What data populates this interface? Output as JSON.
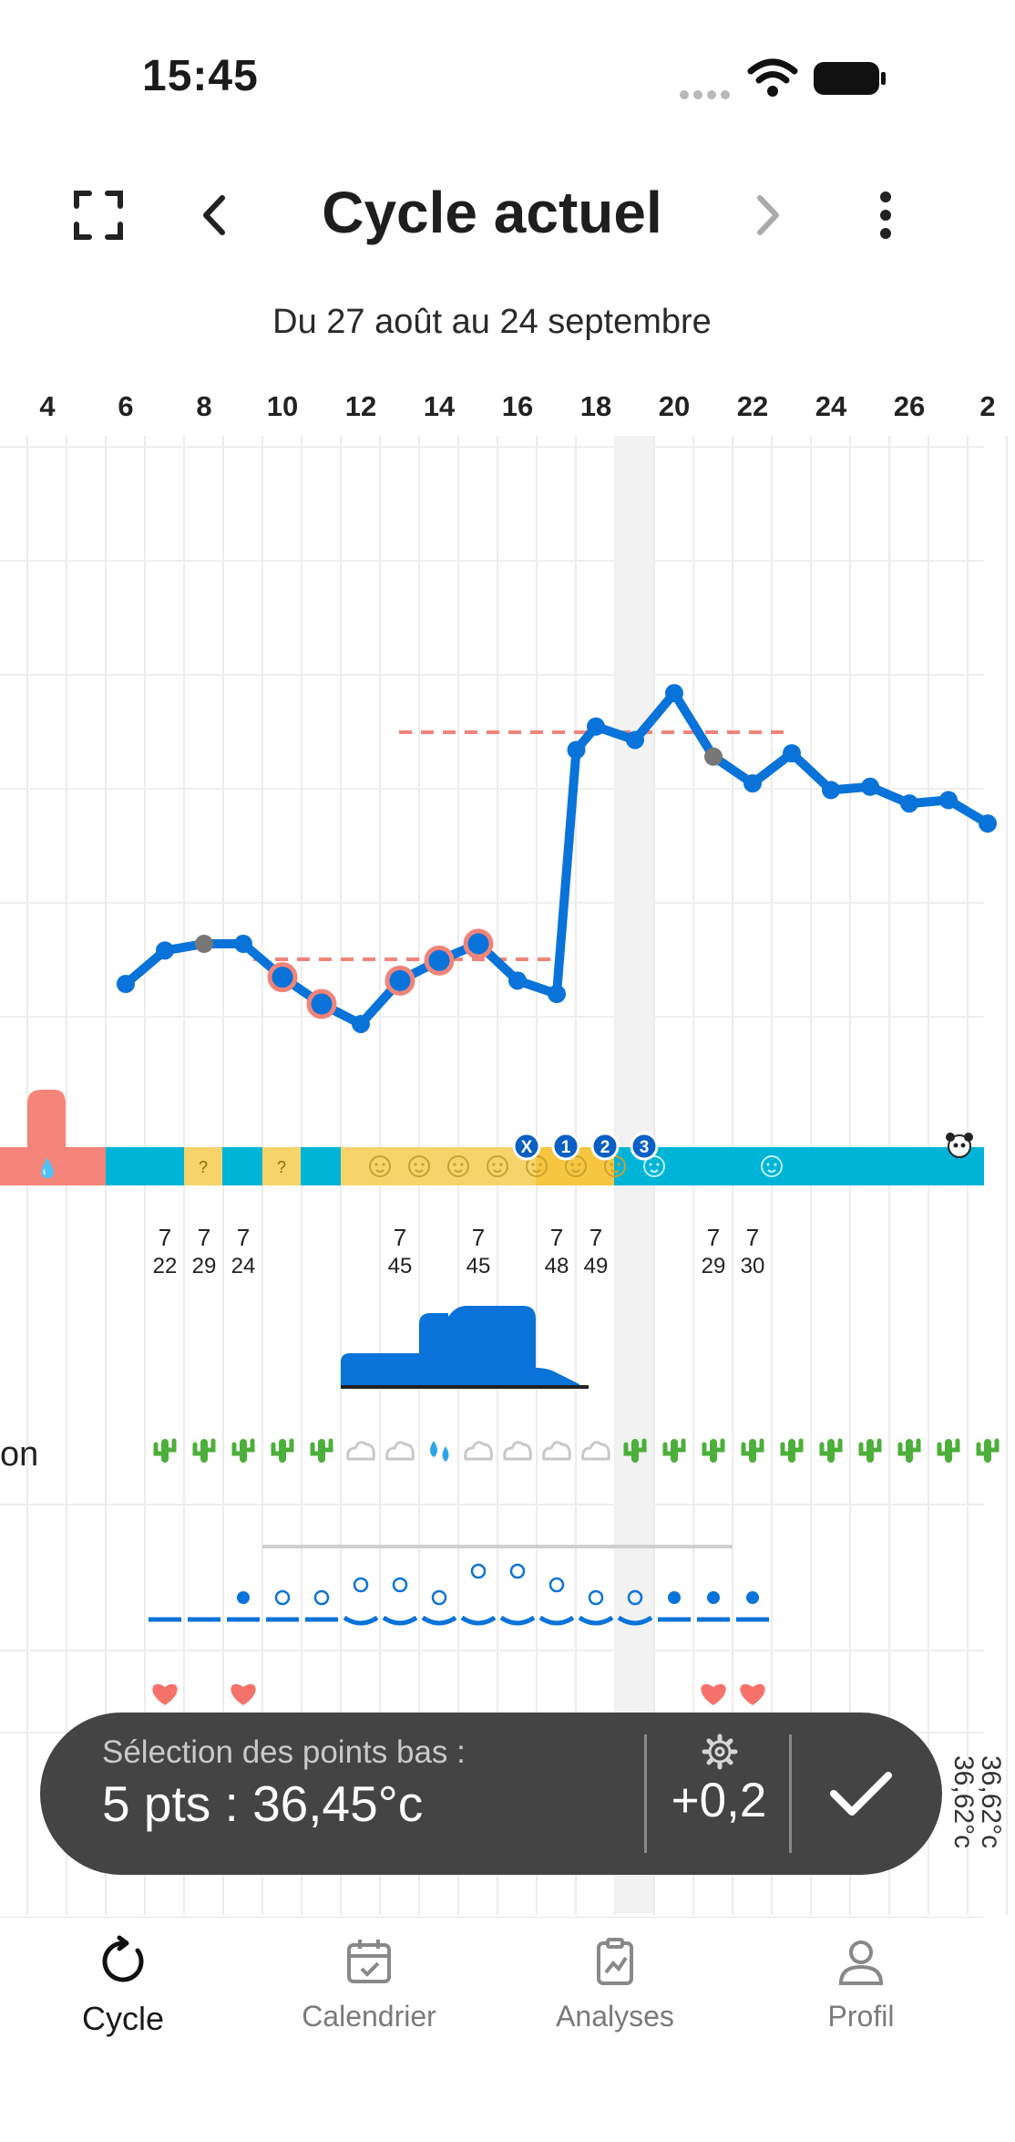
{
  "status_bar": {
    "time": "15:45"
  },
  "header": {
    "title": "Cycle actuel",
    "date_range": "Du 27 août au 24 septembre"
  },
  "day_labels": [
    "4",
    "6",
    "8",
    "10",
    "12",
    "14",
    "16",
    "18",
    "20",
    "22",
    "24",
    "26",
    "2"
  ],
  "temp_chart": {
    "days": [
      6,
      7,
      8,
      9,
      10,
      11,
      12,
      13,
      14,
      15,
      16,
      17,
      17.5,
      18,
      19,
      20,
      21,
      22,
      23,
      24,
      25,
      26,
      27,
      28
    ],
    "values": [
      36.45,
      36.55,
      36.57,
      36.57,
      36.47,
      36.39,
      36.33,
      36.46,
      36.52,
      36.57,
      36.46,
      36.42,
      37.15,
      37.22,
      37.18,
      37.32,
      37.13,
      37.05,
      37.14,
      37.03,
      37.04,
      36.99,
      37.0,
      36.93
    ]
  },
  "selection": {
    "label": "Sélection des points bas :",
    "value": "5 pts : 36,45°c",
    "offset": "+0,2"
  },
  "side_temps": [
    "36,62°c",
    "36,62°c"
  ],
  "phase_markers": [
    "X",
    "1",
    "2",
    "3"
  ],
  "value_rows": [
    {
      "top": "7",
      "bottom": "22"
    },
    {
      "top": "7",
      "bottom": "29"
    },
    {
      "top": "7",
      "bottom": "24"
    },
    {
      "top": "7",
      "bottom": "45"
    },
    {
      "top": "7",
      "bottom": "45"
    },
    {
      "top": "7",
      "bottom": "48"
    },
    {
      "top": "7",
      "bottom": "49"
    },
    {
      "top": "7",
      "bottom": "29"
    },
    {
      "top": "7",
      "bottom": "30"
    }
  ],
  "row_labels": {
    "mucus_partial": "on"
  },
  "bottom_nav": [
    {
      "label": "Cycle",
      "icon": "cycle-icon"
    },
    {
      "label": "Calendrier",
      "icon": "calendar-icon"
    },
    {
      "label": "Analyses",
      "icon": "analysis-icon"
    },
    {
      "label": "Profil",
      "icon": "profile-icon"
    }
  ],
  "colors": {
    "line": "#0a73d9",
    "accent": "#f0847a",
    "band": "#00b4d8",
    "fertile": "#f6d46a",
    "pill": "#444444"
  }
}
